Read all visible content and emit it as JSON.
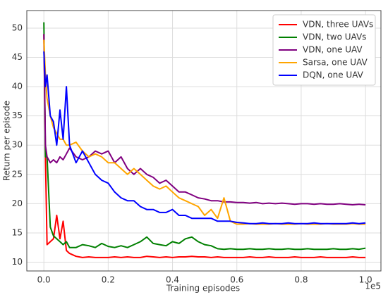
{
  "chart_data": {
    "type": "line",
    "x_label": "Training episodes",
    "y_label": "Return per episode",
    "x_offset_label": "1e5",
    "x": [
      0,
      0.005,
      0.01,
      0.02,
      0.03,
      0.04,
      0.05,
      0.06,
      0.07,
      0.08,
      0.1,
      0.12,
      0.14,
      0.16,
      0.18,
      0.2,
      0.22,
      0.24,
      0.26,
      0.28,
      0.3,
      0.32,
      0.34,
      0.36,
      0.38,
      0.4,
      0.42,
      0.44,
      0.46,
      0.48,
      0.5,
      0.52,
      0.54,
      0.56,
      0.58,
      0.6,
      0.62,
      0.64,
      0.66,
      0.68,
      0.7,
      0.72,
      0.74,
      0.76,
      0.78,
      0.8,
      0.82,
      0.84,
      0.86,
      0.88,
      0.9,
      0.92,
      0.94,
      0.96,
      0.98,
      1.0
    ],
    "series": [
      {
        "name": "VDN, three UAVs",
        "color": "#ff0000",
        "values": [
          49,
          28,
          13,
          13.5,
          14,
          18,
          14,
          17,
          12,
          11.5,
          11,
          10.8,
          10.9,
          10.8,
          10.8,
          10.8,
          10.9,
          10.8,
          10.9,
          10.8,
          10.8,
          11.0,
          10.9,
          10.8,
          10.9,
          10.8,
          10.9,
          10.9,
          11.0,
          10.9,
          10.9,
          10.8,
          10.9,
          10.8,
          10.8,
          10.8,
          10.8,
          10.9,
          10.8,
          10.8,
          10.9,
          10.8,
          10.8,
          10.8,
          10.9,
          10.8,
          10.8,
          10.8,
          10.9,
          10.8,
          10.8,
          10.8,
          10.8,
          10.9,
          10.8,
          10.8
        ]
      },
      {
        "name": "VDN, two UAVs",
        "color": "#008000",
        "values": [
          51,
          28,
          28,
          16,
          14.5,
          14,
          13.5,
          13,
          13.5,
          12.5,
          12.5,
          13,
          12.8,
          12.5,
          13.2,
          12.7,
          12.5,
          12.8,
          12.5,
          13,
          13.5,
          14.3,
          13.2,
          13,
          12.8,
          13.5,
          13.2,
          14,
          14.3,
          13.5,
          13,
          12.8,
          12.3,
          12.2,
          12.3,
          12.2,
          12.2,
          12.3,
          12.2,
          12.2,
          12.3,
          12.2,
          12.2,
          12.3,
          12.2,
          12.2,
          12.3,
          12.2,
          12.2,
          12.2,
          12.3,
          12.2,
          12.2,
          12.3,
          12.2,
          12.4
        ]
      },
      {
        "name": "VDN, one UAV",
        "color": "#800080",
        "values": [
          49,
          30,
          28,
          27,
          27.5,
          27,
          28,
          27.5,
          28.5,
          29.5,
          28,
          27.5,
          28,
          29,
          28.5,
          29,
          27,
          28,
          26,
          25,
          26,
          25,
          24.5,
          23.5,
          24,
          23,
          22,
          22,
          21.5,
          21,
          20.8,
          20.5,
          20.5,
          20.3,
          20.3,
          20.2,
          20.2,
          20.1,
          20.2,
          20,
          20.1,
          20,
          20.1,
          20,
          19.9,
          20,
          20,
          19.9,
          20,
          19.9,
          19.9,
          20,
          19.9,
          19.8,
          19.9,
          19.8
        ]
      },
      {
        "name": "Sarsa, one UAV",
        "color": "#ffa500",
        "values": [
          48,
          42,
          38,
          35,
          33,
          32,
          31,
          31,
          30,
          30,
          30.5,
          29,
          28,
          28.5,
          28,
          27,
          27,
          26,
          25,
          26,
          25,
          24,
          23,
          22.5,
          23,
          22,
          21,
          20.5,
          20,
          19.5,
          18,
          19,
          17.5,
          21,
          17,
          16.5,
          16.5,
          16.6,
          16.5,
          16.5,
          16.5,
          16.6,
          16.5,
          16.5,
          16.5,
          16.6,
          16.5,
          16.5,
          16.5,
          16.6,
          16.5,
          16.5,
          16.5,
          16.6,
          16.5,
          16.5
        ]
      },
      {
        "name": "DQN, one UAV",
        "color": "#0000ff",
        "values": [
          46,
          40,
          42,
          35,
          34,
          30,
          36,
          31,
          40,
          30,
          27,
          29,
          27,
          25,
          24,
          23.5,
          22,
          21,
          20.5,
          20.5,
          19.5,
          19,
          19,
          18.5,
          18.5,
          19,
          18,
          18,
          17.5,
          17.5,
          17.5,
          17.5,
          17,
          17,
          17,
          16.8,
          16.7,
          16.6,
          16.6,
          16.7,
          16.6,
          16.6,
          16.6,
          16.7,
          16.6,
          16.6,
          16.6,
          16.7,
          16.6,
          16.6,
          16.6,
          16.6,
          16.6,
          16.7,
          16.6,
          16.7
        ]
      }
    ],
    "xlim": [
      -0.053,
      1.048
    ],
    "ylim": [
      8.5,
      53
    ],
    "xticks": [
      {
        "value": 0,
        "label": "0.0"
      },
      0.2,
      0.4,
      0.6,
      0.8,
      {
        "value": 1,
        "label": "1.0"
      }
    ],
    "yticks": [
      10,
      15,
      20,
      25,
      30,
      35,
      40,
      45,
      50
    ],
    "grid": true,
    "legend": "upper right"
  }
}
